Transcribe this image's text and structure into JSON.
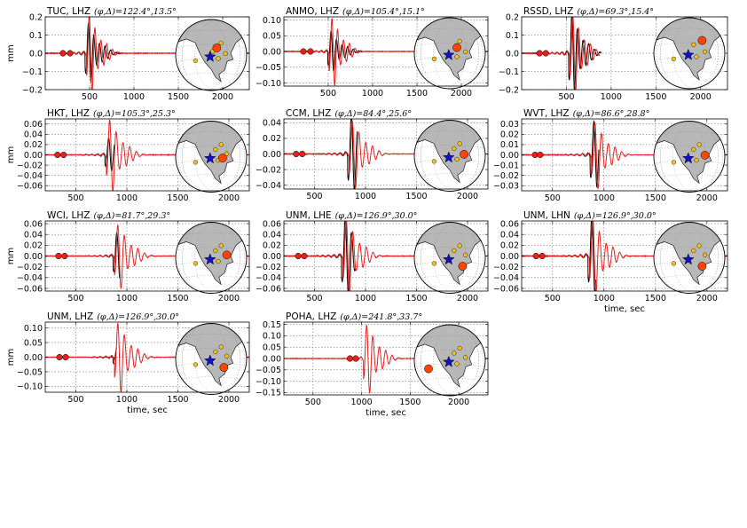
{
  "figure": {
    "colors": {
      "observed": "#000000",
      "synthetic": "#e8201c",
      "marker": "#e8201c",
      "event_marker": "#ff4500",
      "station_dot": "#f0c020",
      "star": "#1010cc",
      "land": "#b8b8b8",
      "globe_edge": "#000000"
    },
    "icons": {
      "epicenter": "star-icon",
      "station": "circle-icon",
      "map": "globe-icon"
    }
  },
  "chart_data": [
    {
      "type": "line",
      "station": "TUC, LHZ",
      "title": "TUC, LHZ",
      "params": "(φ,Δ)=122.4°,13.5°",
      "ylabel": "mm",
      "xlabel": "",
      "xlim": [
        0,
        2300
      ],
      "ylim": [
        -0.2,
        0.2
      ],
      "xticks": [
        500,
        1000,
        1500,
        2000
      ],
      "yticks": [
        -0.2,
        -0.1,
        0.0,
        0.1,
        0.2
      ],
      "yticklabels": [
        "−0.2",
        "−0.1",
        "0.0",
        "0.1",
        "0.2"
      ],
      "markers": [
        200,
        280
      ],
      "phase_time": 485,
      "obs_amp": 0.15,
      "obs_end": 880,
      "syn_amp": 0.2,
      "syn_end": 2300,
      "event": [
        0.58,
        0.4
      ],
      "stations": [
        [
          0.64,
          0.33
        ],
        [
          0.52,
          0.45
        ],
        [
          0.7,
          0.48
        ],
        [
          0.6,
          0.55
        ],
        [
          0.28,
          0.58
        ]
      ]
    },
    {
      "type": "line",
      "station": "ANMO, LHZ",
      "title": "ANMO, LHZ",
      "params": "(φ,Δ)=105.4°,15.1°",
      "ylabel": "",
      "xlabel": "",
      "xlim": [
        0,
        2300
      ],
      "ylim": [
        -0.11,
        0.11
      ],
      "xticks": [
        500,
        1000,
        1500,
        2000
      ],
      "yticks": [
        -0.1,
        -0.05,
        0.0,
        0.05,
        0.1
      ],
      "yticklabels": [
        "−0.10",
        "−0.05",
        "0.00",
        "0.05",
        "0.10"
      ],
      "markers": [
        220,
        300
      ],
      "phase_time": 530,
      "obs_amp": 0.06,
      "obs_end": 900,
      "syn_amp": 0.1,
      "syn_end": 2300,
      "event": [
        0.6,
        0.42
      ],
      "stations": [
        [
          0.64,
          0.33
        ],
        [
          0.72,
          0.48
        ],
        [
          0.6,
          0.55
        ],
        [
          0.28,
          0.58
        ]
      ]
    },
    {
      "type": "line",
      "station": "RSSD, LHZ",
      "title": "RSSD, LHZ",
      "params": "(φ,Δ)=69.3°,15.4°",
      "ylabel": "",
      "xlabel": "",
      "xlim": [
        0,
        2300
      ],
      "ylim": [
        -0.2,
        0.2
      ],
      "xticks": [
        500,
        1000,
        1500,
        2000
      ],
      "yticks": [
        -0.2,
        -0.1,
        0.0,
        0.1,
        0.2
      ],
      "yticklabels": [
        "−0.2",
        "−0.1",
        "0.0",
        "0.1",
        "0.2"
      ],
      "markers": [
        200,
        270
      ],
      "phase_time": 560,
      "obs_amp": 0.2,
      "obs_end": 890,
      "syn_amp": 0.2,
      "syn_end": 870,
      "event": [
        0.68,
        0.32
      ],
      "stations": [
        [
          0.56,
          0.38
        ],
        [
          0.72,
          0.48
        ],
        [
          0.6,
          0.55
        ],
        [
          0.28,
          0.58
        ]
      ]
    },
    {
      "type": "line",
      "station": "HKT, LHZ",
      "title": "HKT, LHZ",
      "params": "(φ,Δ)=105.3°,25.3°",
      "ylabel": "mm",
      "xlabel": "",
      "xlim": [
        200,
        2200
      ],
      "ylim": [
        -0.07,
        0.07
      ],
      "xticks": [
        500,
        1000,
        1500,
        2000
      ],
      "yticks": [
        -0.06,
        -0.04,
        -0.02,
        0.0,
        0.02,
        0.04,
        0.06
      ],
      "yticklabels": [
        "−0.06",
        "−0.04",
        "−0.02",
        "0.00",
        "0.02",
        "0.04",
        "0.06"
      ],
      "markers": [
        320,
        380
      ],
      "phase_time": 820,
      "obs_amp": 0.03,
      "obs_end": 880,
      "syn_amp": 0.065,
      "syn_end": 2200,
      "event": [
        0.66,
        0.52
      ],
      "stations": [
        [
          0.64,
          0.33
        ],
        [
          0.56,
          0.4
        ],
        [
          0.72,
          0.46
        ],
        [
          0.6,
          0.55
        ],
        [
          0.28,
          0.58
        ]
      ]
    },
    {
      "type": "line",
      "station": "CCM, LHZ",
      "title": "CCM, LHZ",
      "params": "(φ,Δ)=84.4°,25.6°",
      "ylabel": "",
      "xlabel": "",
      "xlim": [
        200,
        2200
      ],
      "ylim": [
        -0.045,
        0.045
      ],
      "xticks": [
        500,
        1000,
        1500,
        2000
      ],
      "yticks": [
        -0.04,
        -0.02,
        0.0,
        0.02,
        0.04
      ],
      "yticklabels": [
        "−0.04",
        "−0.02",
        "0.00",
        "0.02",
        "0.04"
      ],
      "markers": [
        320,
        380
      ],
      "phase_time": 860,
      "obs_amp": 0.045,
      "obs_end": 920,
      "syn_amp": 0.04,
      "syn_end": 2200,
      "event": [
        0.7,
        0.48
      ],
      "stations": [
        [
          0.64,
          0.33
        ],
        [
          0.56,
          0.4
        ],
        [
          0.6,
          0.55
        ],
        [
          0.28,
          0.58
        ]
      ]
    },
    {
      "type": "line",
      "station": "WVT, LHZ",
      "title": "WVT, LHZ",
      "params": "(φ,Δ)=86.6°,28.8°",
      "ylabel": "",
      "xlabel": "",
      "xlim": [
        200,
        2200
      ],
      "ylim": [
        -0.035,
        0.035
      ],
      "xticks": [
        500,
        1000,
        1500,
        2000
      ],
      "yticks": [
        -0.03,
        -0.02,
        -0.01,
        0.0,
        0.01,
        0.02,
        0.03
      ],
      "yticklabels": [
        "−0.03",
        "−0.02",
        "−0.01",
        "0.00",
        "0.01",
        "0.02",
        "0.03"
      ],
      "markers": [
        330,
        380
      ],
      "phase_time": 900,
      "obs_amp": 0.03,
      "obs_end": 950,
      "syn_amp": 0.03,
      "syn_end": 2200,
      "event": [
        0.72,
        0.48
      ],
      "stations": [
        [
          0.64,
          0.33
        ],
        [
          0.56,
          0.4
        ],
        [
          0.6,
          0.55
        ],
        [
          0.28,
          0.58
        ]
      ]
    },
    {
      "type": "line",
      "station": "WCI, LHZ",
      "title": "WCI, LHZ",
      "params": "(φ,Δ)=81.7°,29.3°",
      "ylabel": "mm",
      "xlabel": "",
      "xlim": [
        200,
        2200
      ],
      "ylim": [
        -0.065,
        0.065
      ],
      "xticks": [
        500,
        1000,
        1500,
        2000
      ],
      "yticks": [
        -0.06,
        -0.04,
        -0.02,
        0.0,
        0.02,
        0.04,
        0.06
      ],
      "yticklabels": [
        "−0.06",
        "−0.04",
        "−0.02",
        "0.00",
        "0.02",
        "0.04",
        "0.06"
      ],
      "markers": [
        330,
        390
      ],
      "phase_time": 900,
      "obs_amp": 0.04,
      "obs_end": 930,
      "syn_amp": 0.055,
      "syn_end": 2200,
      "event": [
        0.72,
        0.46
      ],
      "stations": [
        [
          0.64,
          0.33
        ],
        [
          0.56,
          0.4
        ],
        [
          0.6,
          0.55
        ],
        [
          0.28,
          0.58
        ]
      ]
    },
    {
      "type": "line",
      "station": "UNM, LHE",
      "title": "UNM, LHE",
      "params": "(φ,Δ)=126.9°,30.0°",
      "ylabel": "",
      "xlabel": "",
      "xlim": [
        200,
        2200
      ],
      "ylim": [
        -0.065,
        0.065
      ],
      "xticks": [
        500,
        1000,
        1500,
        2000
      ],
      "yticks": [
        -0.06,
        -0.04,
        -0.02,
        0.0,
        0.02,
        0.04,
        0.06
      ],
      "yticklabels": [
        "−0.06",
        "−0.04",
        "−0.02",
        "0.00",
        "0.02",
        "0.04",
        "0.06"
      ],
      "markers": [
        340,
        400
      ],
      "phase_time": 800,
      "obs_amp": 0.065,
      "obs_end": 900,
      "syn_amp": 0.065,
      "syn_end": 2200,
      "event": [
        0.68,
        0.62
      ],
      "stations": [
        [
          0.64,
          0.33
        ],
        [
          0.56,
          0.4
        ],
        [
          0.72,
          0.46
        ],
        [
          0.28,
          0.58
        ]
      ]
    },
    {
      "type": "line",
      "station": "UNM, LHN",
      "title": "UNM, LHN",
      "params": "(φ,Δ)=126.9°,30.0°",
      "ylabel": "",
      "xlabel": "time, sec",
      "xlim": [
        200,
        2200
      ],
      "ylim": [
        -0.065,
        0.065
      ],
      "xticks": [
        500,
        1000,
        1500,
        2000
      ],
      "yticks": [
        -0.06,
        -0.04,
        -0.02,
        0.0,
        0.02,
        0.04,
        0.06
      ],
      "yticklabels": [
        "−0.06",
        "−0.04",
        "−0.02",
        "0.00",
        "0.02",
        "0.04",
        "0.06"
      ],
      "markers": [
        340,
        400
      ],
      "phase_time": 880,
      "obs_amp": 0.065,
      "obs_end": 920,
      "syn_amp": 0.065,
      "syn_end": 2200,
      "event": [
        0.68,
        0.62
      ],
      "stations": [
        [
          0.64,
          0.33
        ],
        [
          0.56,
          0.4
        ],
        [
          0.72,
          0.46
        ],
        [
          0.28,
          0.58
        ]
      ]
    },
    {
      "type": "line",
      "station": "UNM, LHZ",
      "title": "UNM, LHZ",
      "params": "(φ,Δ)=126.9°,30.0°",
      "ylabel": "mm",
      "xlabel": "time, sec",
      "xlim": [
        200,
        2200
      ],
      "ylim": [
        -0.12,
        0.12
      ],
      "xticks": [
        500,
        1000,
        1500,
        2000
      ],
      "yticks": [
        -0.1,
        -0.05,
        0.0,
        0.05,
        0.1
      ],
      "yticklabels": [
        "−0.10",
        "−0.05",
        "0.00",
        "0.05",
        "0.10"
      ],
      "markers": [
        340,
        400
      ],
      "phase_time": 900,
      "obs_amp": 0.03,
      "obs_end": 900,
      "syn_amp": 0.11,
      "syn_end": 2200,
      "event": [
        0.68,
        0.62
      ],
      "stations": [
        [
          0.64,
          0.33
        ],
        [
          0.56,
          0.4
        ],
        [
          0.72,
          0.46
        ],
        [
          0.28,
          0.58
        ]
      ]
    },
    {
      "type": "line",
      "station": "POHA, LHZ",
      "title": "POHA, LHZ",
      "params": "(φ,Δ)=241.8°,33.7°",
      "ylabel": "",
      "xlabel": "time, sec",
      "xlim": [
        200,
        2300
      ],
      "ylim": [
        -0.16,
        0.16
      ],
      "xticks": [
        500,
        1000,
        1500,
        2000
      ],
      "yticks": [
        -0.15,
        -0.1,
        -0.05,
        0.0,
        0.05,
        0.1,
        0.15
      ],
      "yticklabels": [
        "−0.15",
        "−0.10",
        "−0.05",
        "0.00",
        "0.05",
        "0.10",
        "0.15"
      ],
      "markers": [
        880,
        940
      ],
      "phase_time": 1040,
      "obs_amp": 0.01,
      "obs_end": 950,
      "syn_amp": 0.14,
      "syn_end": 2300,
      "event": [
        0.2,
        0.62
      ],
      "stations": [
        [
          0.64,
          0.33
        ],
        [
          0.56,
          0.4
        ],
        [
          0.72,
          0.46
        ],
        [
          0.6,
          0.55
        ]
      ]
    }
  ]
}
